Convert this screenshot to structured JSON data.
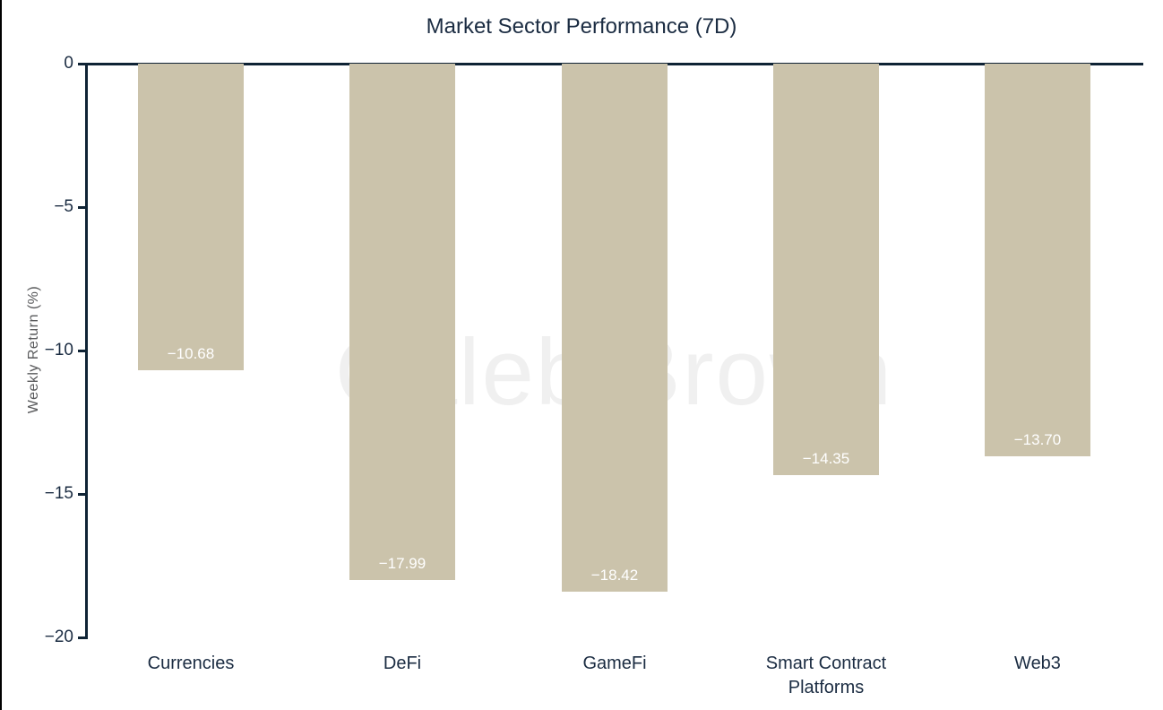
{
  "title": "Market Sector Performance (7D)",
  "watermark": "Caleb Brown",
  "colors": {
    "background": "#ffffff",
    "bar": "#cbc3ab",
    "axis": "#0f2335",
    "text_dark": "#1b2c42",
    "text_muted": "#58595b",
    "value_label": "#ffffff",
    "watermark": "#f0f0f0",
    "left_border": "#000000"
  },
  "chart_data": {
    "type": "bar",
    "title": "Market Sector Performance (7D)",
    "categories": [
      "Currencies",
      "DeFi",
      "GameFi",
      "Smart Contract Platforms",
      "Web3"
    ],
    "values": [
      -10.68,
      -17.99,
      -18.42,
      -14.35,
      -13.7
    ],
    "value_labels": [
      "−10.68",
      "−17.99",
      "−18.42",
      "−14.35",
      "−13.70"
    ],
    "xlabel": "",
    "ylabel": "Weekly Return (%)",
    "ylim": [
      -20,
      0
    ],
    "yticks": [
      0,
      -5,
      -10,
      -15,
      -20
    ],
    "ytick_labels": [
      "0",
      "−5",
      "−10",
      "−15",
      "−20"
    ],
    "grid": false,
    "legend": "none",
    "bar_color": "#cbc3ab",
    "value_label_position": "inside-bottom"
  }
}
